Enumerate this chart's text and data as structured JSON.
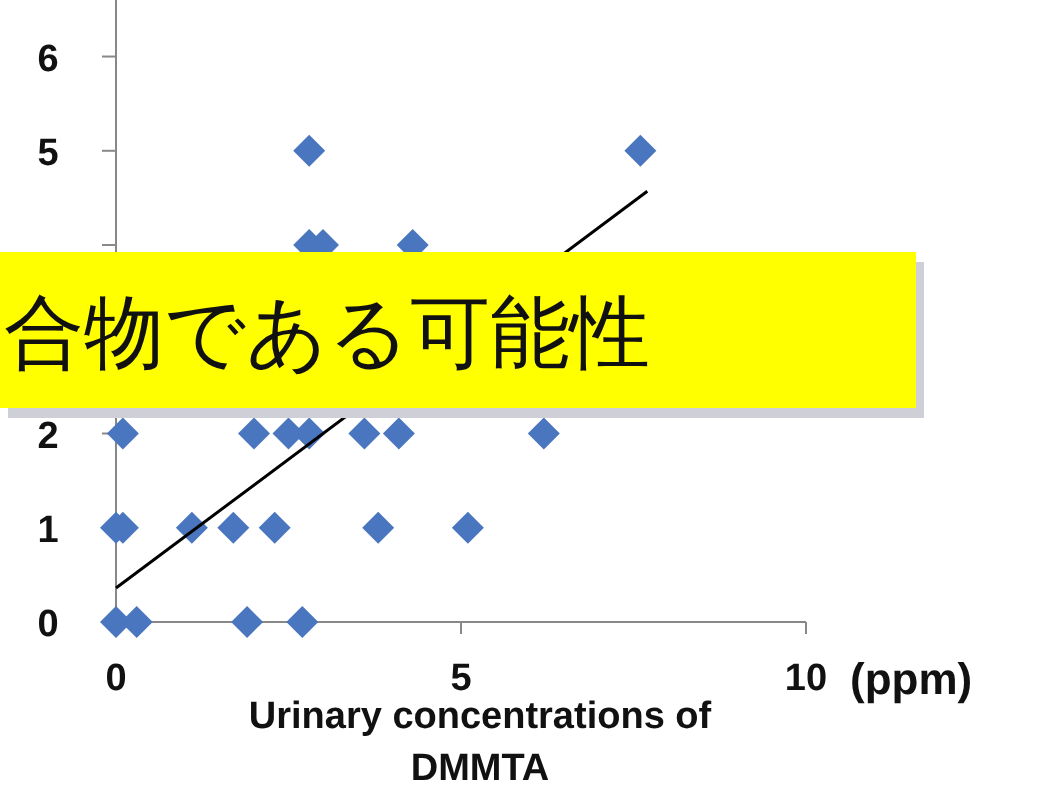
{
  "chart_data": {
    "type": "scatter",
    "xlabel": "Urinary concentrations of DMMTA",
    "annotations": [
      "(ppm)",
      "合物である可能性"
    ],
    "xlim": [
      0,
      10
    ],
    "xticks": [
      0,
      5,
      10
    ],
    "ylim": [
      0,
      6.6
    ],
    "yticks": [
      0,
      1,
      2,
      {
        "value": 4,
        "label": null
      },
      5,
      6
    ],
    "series": [
      {
        "marker": "diamond",
        "color": "#4a76c0",
        "x": [
          2.8,
          7.6,
          2.8,
          3.0,
          4.3,
          0.1,
          2.0,
          2.5,
          2.8,
          3.6,
          4.1,
          6.2,
          0,
          0.1,
          1.1,
          1.7,
          2.3,
          3.8,
          5.1,
          0,
          0.3,
          1.9,
          2.7
        ],
        "values": [
          5,
          5,
          4,
          4,
          4,
          2,
          2,
          2,
          2,
          2,
          2,
          2,
          1,
          1,
          1,
          1,
          1,
          1,
          1,
          0,
          0,
          0,
          0
        ]
      },
      {
        "type": "line",
        "color": "#000000",
        "x": [
          0,
          7.7
        ],
        "values": [
          0.36,
          4.57
        ]
      }
    ]
  }
}
